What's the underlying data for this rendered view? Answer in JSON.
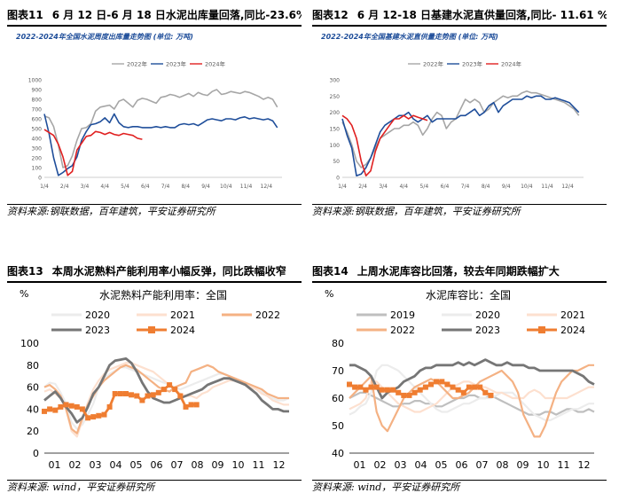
{
  "panels": [
    {
      "figure_label": "图表11",
      "title": "6 月 12 日-6 月 18 日水泥出库量回落,同比-23.6%",
      "source": "资料来源:钢联数据，百年建筑，平安证券研究所"
    },
    {
      "figure_label": "图表12",
      "title": "6 月 12-18 日基建水泥直供量回落,同比- 11.61 %",
      "source": "资料来源:钢联数据，百年建筑，平安证券研究所"
    },
    {
      "figure_label": "图表13",
      "title": "本周水泥熟料产能利用率小幅反弹，同比跌幅收窄",
      "source": "资料来源: wind，平安证券研究所"
    },
    {
      "figure_label": "图表14",
      "title": "上周水泥库容比回落，较去年同期跌幅扩大",
      "source": "资料来源: wind，平安证券研究所"
    }
  ],
  "chart_data": [
    {
      "type": "line",
      "title": "2022-2024年全国水泥周度出库量走势图 (单位: 万吨)",
      "x_ticks": [
        "1/4",
        "2/4",
        "3/4",
        "4/4",
        "5/4",
        "6/4",
        "7/4",
        "8/4",
        "9/4",
        "10/4",
        "11/4",
        "12/4"
      ],
      "ylim": [
        0,
        1000
      ],
      "y_ticks": [
        0,
        100,
        200,
        300,
        400,
        500,
        600,
        700,
        800,
        900,
        1000
      ],
      "legend_position": "top-center",
      "series": [
        {
          "name": "2022年",
          "color": "#a6a6a6",
          "week_start": 1,
          "values": [
            630,
            610,
            520,
            330,
            100,
            120,
            220,
            380,
            500,
            510,
            550,
            680,
            720,
            730,
            740,
            700,
            780,
            800,
            760,
            720,
            790,
            810,
            800,
            780,
            760,
            820,
            830,
            850,
            840,
            820,
            840,
            860,
            830,
            870,
            850,
            840,
            880,
            900,
            850,
            860,
            880,
            870,
            860,
            880,
            870,
            850,
            830,
            800,
            820,
            800,
            720
          ]
        },
        {
          "name": "2023年",
          "color": "#1f4e9a",
          "week_start": 1,
          "values": [
            650,
            450,
            200,
            20,
            50,
            90,
            120,
            210,
            380,
            470,
            540,
            550,
            570,
            610,
            560,
            650,
            560,
            520,
            510,
            520,
            520,
            510,
            510,
            510,
            520,
            510,
            520,
            510,
            510,
            540,
            550,
            540,
            550,
            530,
            560,
            590,
            600,
            590,
            580,
            600,
            600,
            590,
            610,
            620,
            600,
            610,
            600,
            590,
            600,
            580,
            510
          ]
        },
        {
          "name": "2024年",
          "color": "#e02020",
          "week_start": 1,
          "values": [
            490,
            460,
            430,
            340,
            210,
            20,
            60,
            280,
            350,
            420,
            430,
            470,
            460,
            440,
            460,
            440,
            430,
            450,
            440,
            430,
            400,
            390
          ]
        }
      ]
    },
    {
      "type": "line",
      "title": "2022-2024年全国基建水泥直供量走势图 (单位: 万吨)",
      "x_ticks": [
        "1/4",
        "2/4",
        "3/4",
        "4/4",
        "5/4",
        "6/4",
        "7/4",
        "8/4",
        "9/4",
        "10/4",
        "11/4",
        "12/4"
      ],
      "ylim": [
        0,
        300
      ],
      "y_ticks": [
        0,
        50,
        100,
        150,
        200,
        250,
        300
      ],
      "legend_position": "top-center",
      "series": [
        {
          "name": "2022年",
          "color": "#a6a6a6",
          "week_start": 1,
          "values": [
            170,
            140,
            100,
            50,
            30,
            40,
            60,
            90,
            120,
            130,
            140,
            150,
            150,
            160,
            160,
            170,
            160,
            130,
            150,
            180,
            200,
            190,
            150,
            170,
            180,
            210,
            240,
            230,
            240,
            230,
            200,
            210,
            230,
            240,
            250,
            245,
            250,
            250,
            260,
            265,
            260,
            260,
            255,
            250,
            245,
            240,
            235,
            230,
            220,
            210,
            190
          ]
        },
        {
          "name": "2023年",
          "color": "#1f4e9a",
          "week_start": 1,
          "values": [
            180,
            130,
            90,
            5,
            10,
            30,
            60,
            100,
            140,
            160,
            170,
            180,
            190,
            190,
            200,
            180,
            170,
            180,
            190,
            170,
            180,
            180,
            180,
            180,
            180,
            190,
            190,
            200,
            210,
            190,
            200,
            220,
            230,
            200,
            220,
            230,
            240,
            240,
            240,
            250,
            245,
            250,
            250,
            240,
            240,
            245,
            240,
            235,
            230,
            215,
            200
          ]
        },
        {
          "name": "2024年",
          "color": "#e02020",
          "week_start": 1,
          "values": [
            190,
            180,
            160,
            120,
            50,
            5,
            20,
            80,
            120,
            140,
            160,
            180,
            180,
            190,
            180,
            190,
            185,
            180,
            175
          ]
        }
      ]
    },
    {
      "type": "line",
      "title": "水泥熟料产能利用率：全国",
      "ylabel": "%",
      "x_ticks": [
        "01",
        "02",
        "03",
        "04",
        "05",
        "06",
        "07",
        "08",
        "09",
        "10",
        "11",
        "12"
      ],
      "ylim": [
        0,
        100
      ],
      "y_ticks": [
        0,
        20,
        40,
        60,
        80,
        100
      ],
      "legend_position": "top",
      "series": [
        {
          "name": "2020",
          "color": "#ececec",
          "values": [
            60,
            64,
            63,
            55,
            45,
            28,
            22,
            26,
            35,
            45,
            60,
            68,
            72,
            75,
            78,
            78,
            76,
            74,
            72,
            70,
            68,
            66,
            64,
            62,
            60,
            58,
            60,
            62,
            64,
            66,
            68,
            70,
            72,
            72,
            70,
            68,
            66,
            64,
            60,
            58,
            56,
            52,
            50,
            48,
            48,
            50
          ]
        },
        {
          "name": "2021",
          "color": "#fde0cf",
          "values": [
            56,
            58,
            54,
            50,
            40,
            20,
            15,
            30,
            46,
            58,
            66,
            72,
            76,
            78,
            80,
            82,
            82,
            80,
            78,
            76,
            74,
            70,
            66,
            62,
            58,
            54,
            52,
            52,
            50,
            54,
            56,
            60,
            62,
            64,
            66,
            66,
            64,
            62,
            60,
            58,
            54,
            52,
            48,
            46,
            44,
            44
          ]
        },
        {
          "name": "2022",
          "color": "#f4b183",
          "values": [
            60,
            62,
            58,
            52,
            40,
            22,
            18,
            32,
            44,
            52,
            60,
            66,
            70,
            74,
            78,
            80,
            78,
            76,
            72,
            68,
            64,
            60,
            58,
            56,
            60,
            62,
            64,
            74,
            76,
            78,
            80,
            78,
            74,
            72,
            70,
            68,
            66,
            64,
            62,
            60,
            58,
            54,
            52,
            50,
            50,
            50
          ]
        },
        {
          "name": "2023",
          "color": "#767676",
          "values": [
            48,
            52,
            56,
            50,
            42,
            36,
            28,
            32,
            42,
            54,
            60,
            70,
            80,
            84,
            85,
            86,
            82,
            74,
            64,
            56,
            50,
            48,
            46,
            46,
            48,
            50,
            52,
            54,
            56,
            58,
            62,
            64,
            66,
            68,
            68,
            66,
            64,
            62,
            58,
            54,
            48,
            44,
            40,
            40,
            38,
            38
          ]
        },
        {
          "name": "2024",
          "color": "#ef7d31",
          "marker": "square",
          "values": [
            38,
            40,
            39,
            42,
            44,
            43,
            42,
            40,
            32,
            33,
            34,
            35,
            42,
            54,
            54,
            54,
            53,
            52,
            48,
            52,
            53,
            55,
            58,
            62,
            58,
            52,
            42,
            44,
            44
          ]
        }
      ]
    },
    {
      "type": "line",
      "title": "水泥库容比：全国",
      "ylabel": "%",
      "x_ticks": [
        "01",
        "02",
        "03",
        "04",
        "05",
        "06",
        "07",
        "08",
        "09",
        "10",
        "11",
        "12"
      ],
      "ylim": [
        40,
        80
      ],
      "y_ticks": [
        40,
        50,
        60,
        70,
        80
      ],
      "legend_position": "top",
      "series": [
        {
          "name": "2019",
          "color": "#bfbfbf",
          "values": [
            60,
            61,
            62,
            62,
            61,
            60,
            59,
            58,
            57,
            57,
            58,
            58,
            59,
            59,
            58,
            58,
            57,
            57,
            58,
            59,
            60,
            60,
            61,
            61,
            60,
            60,
            61,
            60,
            59,
            58,
            57,
            56,
            55,
            54,
            54,
            54,
            55,
            55,
            54,
            55,
            56,
            56,
            55,
            55,
            56,
            55
          ]
        },
        {
          "name": "2020",
          "color": "#ececec",
          "values": [
            54,
            55,
            57,
            58,
            62,
            70,
            72,
            72,
            71,
            70,
            68,
            66,
            64,
            62,
            60,
            58,
            56,
            55,
            55,
            56,
            57,
            58,
            58,
            59,
            60,
            60,
            60,
            61,
            62,
            62,
            62,
            60,
            58,
            56,
            54,
            53,
            52,
            52,
            53,
            54,
            55,
            56,
            56,
            57,
            58,
            58
          ]
        },
        {
          "name": "2021",
          "color": "#fde0cf",
          "values": [
            56,
            57,
            58,
            60,
            66,
            66,
            64,
            62,
            60,
            58,
            57,
            56,
            55,
            55,
            56,
            57,
            58,
            60,
            62,
            64,
            65,
            66,
            66,
            65,
            64,
            64,
            63,
            62,
            62,
            61,
            60,
            60,
            60,
            62,
            63,
            62,
            60,
            60,
            60,
            60,
            60,
            61,
            62,
            63,
            64,
            64
          ]
        },
        {
          "name": "2022",
          "color": "#f4b183",
          "values": [
            60,
            62,
            64,
            66,
            68,
            55,
            50,
            48,
            52,
            56,
            60,
            62,
            64,
            65,
            66,
            67,
            66,
            64,
            62,
            60,
            60,
            61,
            62,
            64,
            66,
            67,
            68,
            69,
            70,
            68,
            66,
            62,
            54,
            50,
            46,
            46,
            50,
            56,
            62,
            66,
            68,
            70,
            70,
            71,
            72,
            72
          ]
        },
        {
          "name": "2023",
          "color": "#767676",
          "values": [
            72,
            72,
            71,
            70,
            68,
            64,
            60,
            62,
            63,
            64,
            66,
            67,
            68,
            70,
            71,
            71,
            72,
            72,
            72,
            72,
            73,
            72,
            73,
            72,
            73,
            74,
            73,
            72,
            72,
            73,
            72,
            72,
            72,
            71,
            71,
            70,
            70,
            70,
            70,
            70,
            70,
            70,
            69,
            68,
            66,
            65
          ]
        },
        {
          "name": "2024",
          "color": "#ef7d31",
          "marker": "square",
          "values": [
            65,
            64,
            64,
            63,
            64,
            64,
            63,
            63,
            63,
            62,
            61,
            61,
            62,
            63,
            64,
            65,
            66,
            66,
            65,
            64,
            63,
            62,
            64,
            64,
            64,
            62,
            61
          ]
        }
      ]
    }
  ]
}
